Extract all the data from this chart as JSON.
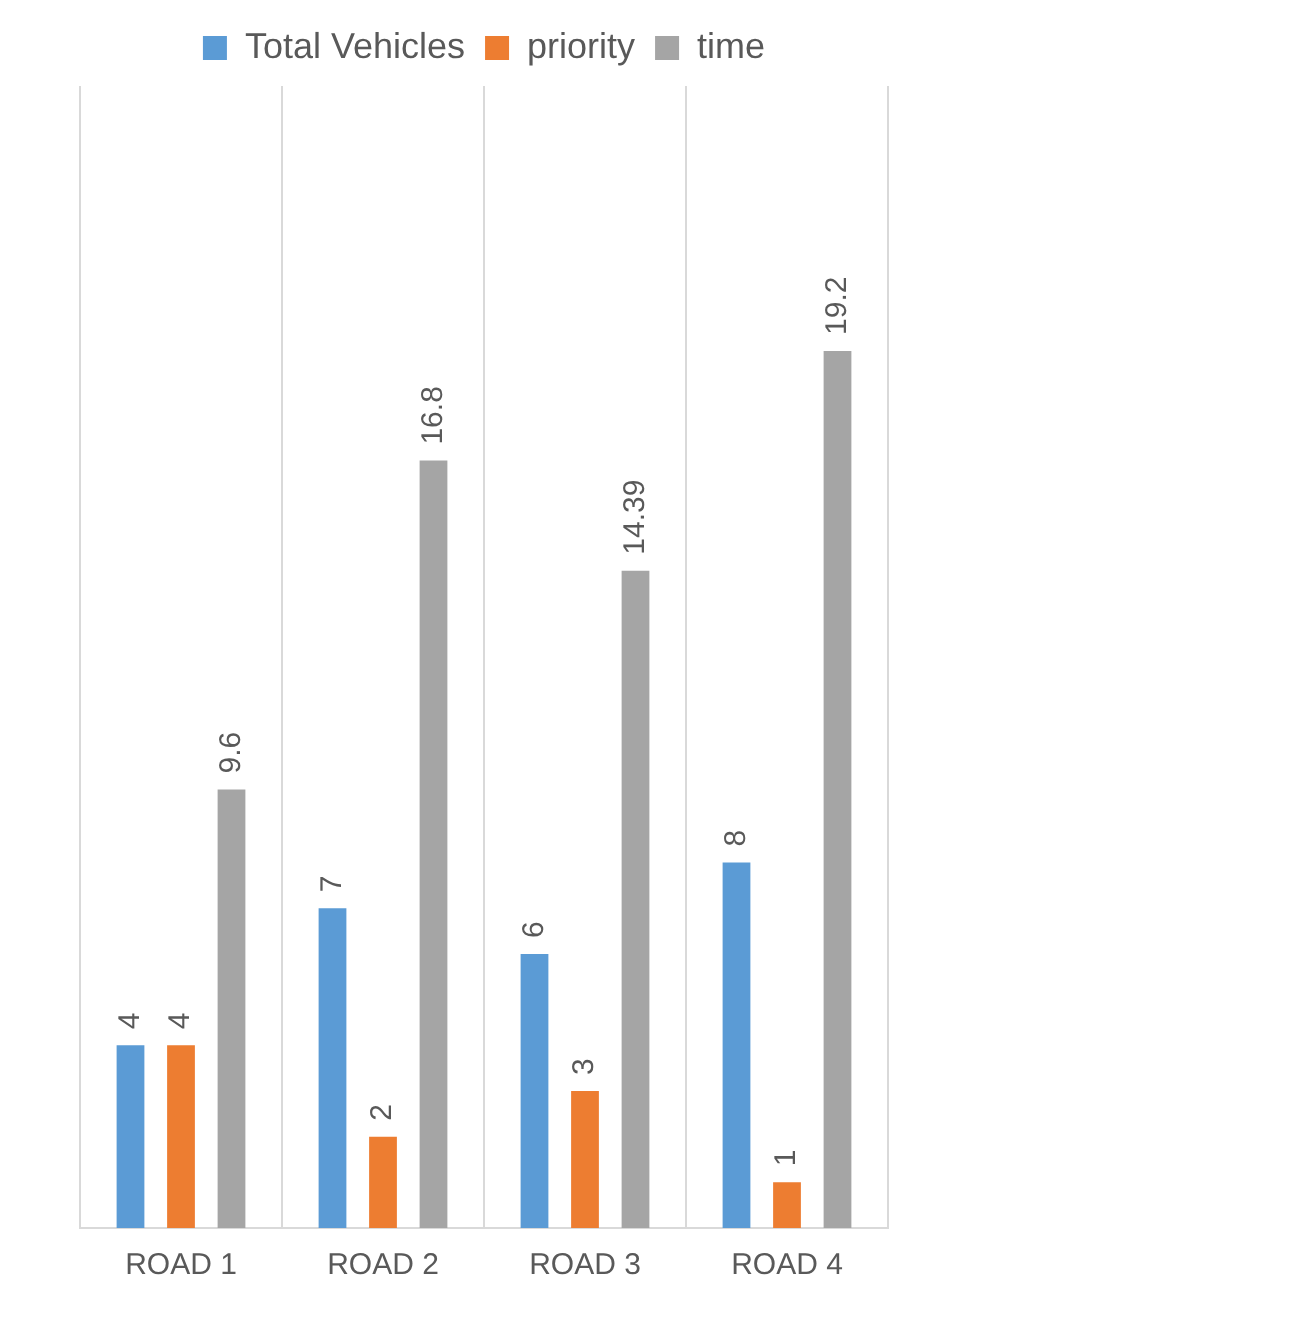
{
  "chart_data": {
    "type": "bar",
    "categories": [
      "ROAD 1",
      "ROAD 2",
      "ROAD 3",
      "ROAD 4"
    ],
    "series": [
      {
        "name": "Total Vehicles",
        "color": "#5b9bd5",
        "values": [
          4,
          7,
          6,
          8
        ]
      },
      {
        "name": "priority",
        "color": "#ed7d31",
        "values": [
          4,
          2,
          3,
          1
        ]
      },
      {
        "name": "time",
        "color": "#a5a5a5",
        "values": [
          9.6,
          16.8,
          14.39,
          19.2
        ]
      }
    ],
    "data_labels": true,
    "legend": "top",
    "grid": "x",
    "tick_labels": "x"
  }
}
